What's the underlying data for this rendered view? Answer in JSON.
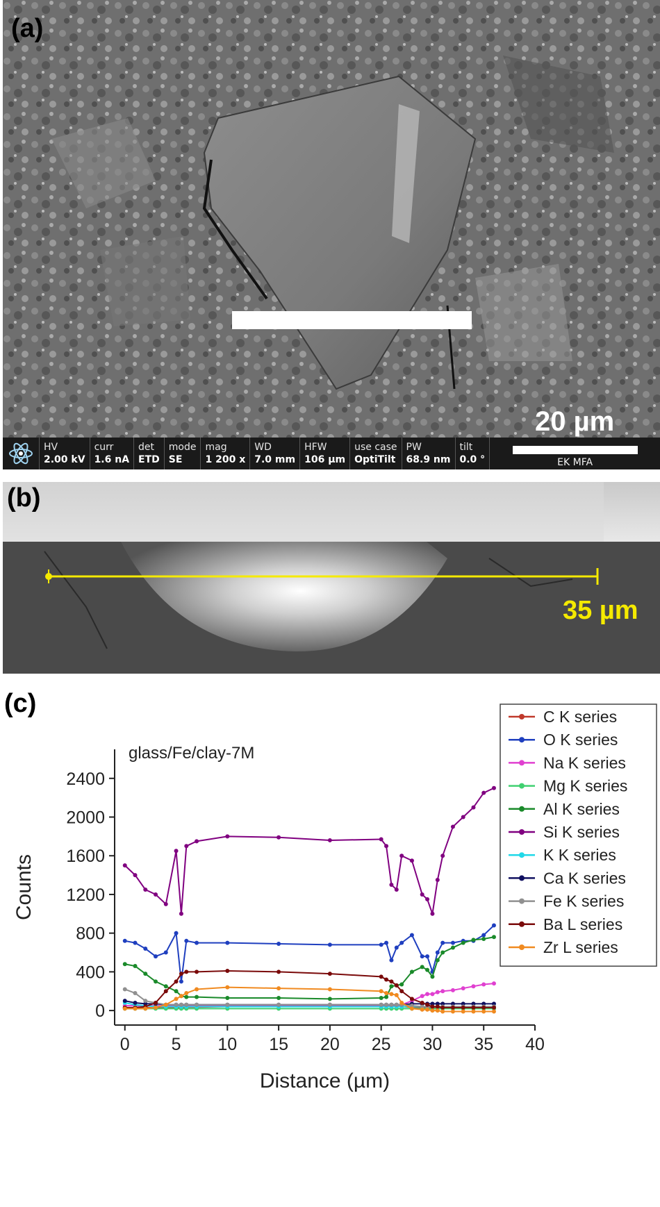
{
  "panel_a": {
    "label": "(a)",
    "scale_text": "20 µm",
    "info_bar": {
      "fields": [
        {
          "label": "HV",
          "value": "2.00 kV"
        },
        {
          "label": "curr",
          "value": "1.6 nA"
        },
        {
          "label": "det",
          "value": "ETD"
        },
        {
          "label": "mode",
          "value": "SE"
        },
        {
          "label": "mag",
          "value": "1 200 x"
        },
        {
          "label": "WD",
          "value": "7.0 mm"
        },
        {
          "label": "HFW",
          "value": "106 µm"
        },
        {
          "label": "use case",
          "value": "OptiTilt"
        },
        {
          "label": "PW",
          "value": "68.9 nm"
        },
        {
          "label": "tilt",
          "value": "0.0 °"
        }
      ],
      "scale_name": "EK MFA"
    }
  },
  "panel_b": {
    "label": "(b)",
    "scale_text": "35 µm",
    "scale_color": "#f5ea00"
  },
  "panel_c": {
    "label": "(c)"
  },
  "chart_data": {
    "type": "line",
    "title": "glass/Fe/clay-7M",
    "xlabel": "Distance (µm)",
    "ylabel": "Counts",
    "xlim": [
      -1,
      40
    ],
    "ylim": [
      -150,
      2700
    ],
    "xticks": [
      0,
      5,
      10,
      15,
      20,
      25,
      30,
      35,
      40
    ],
    "yticks": [
      0,
      400,
      800,
      1200,
      1600,
      2000,
      2400
    ],
    "grid": false,
    "legend_position": "top-right",
    "x": [
      0,
      1,
      2,
      3,
      4,
      5,
      5.5,
      6,
      7,
      10,
      15,
      20,
      25,
      25.5,
      26,
      26.5,
      27,
      28,
      29,
      29.5,
      30,
      30.5,
      31,
      32,
      33,
      34,
      35,
      36
    ],
    "series": [
      {
        "name": "C K series",
        "color": "#c0392b",
        "values": [
          30,
          25,
          30,
          28,
          30,
          30,
          30,
          35,
          35,
          40,
          40,
          40,
          40,
          40,
          40,
          40,
          40,
          35,
          30,
          30,
          30,
          30,
          30,
          30,
          30,
          30,
          30,
          30
        ]
      },
      {
        "name": "O K series",
        "color": "#1f3fbf",
        "values": [
          720,
          700,
          640,
          560,
          600,
          800,
          300,
          720,
          700,
          700,
          690,
          680,
          680,
          700,
          520,
          650,
          700,
          780,
          560,
          560,
          400,
          600,
          700,
          700,
          720,
          720,
          780,
          880
        ]
      },
      {
        "name": "Na K series",
        "color": "#e040d0",
        "values": [
          50,
          50,
          50,
          50,
          50,
          50,
          50,
          50,
          50,
          50,
          50,
          50,
          50,
          50,
          50,
          50,
          60,
          100,
          150,
          170,
          170,
          190,
          200,
          210,
          230,
          250,
          270,
          280
        ]
      },
      {
        "name": "Mg K series",
        "color": "#40d070",
        "values": [
          20,
          20,
          20,
          20,
          20,
          20,
          20,
          20,
          20,
          20,
          20,
          20,
          20,
          20,
          20,
          20,
          20,
          20,
          20,
          20,
          20,
          20,
          20,
          20,
          20,
          20,
          20,
          20
        ]
      },
      {
        "name": "Al K series",
        "color": "#1a8a2a",
        "values": [
          480,
          460,
          380,
          300,
          250,
          200,
          150,
          140,
          140,
          130,
          130,
          120,
          130,
          140,
          250,
          260,
          270,
          400,
          450,
          420,
          350,
          520,
          600,
          650,
          700,
          730,
          740,
          760
        ]
      },
      {
        "name": "Si K series",
        "color": "#800080",
        "values": [
          1500,
          1400,
          1250,
          1200,
          1100,
          1650,
          1000,
          1700,
          1750,
          1800,
          1790,
          1760,
          1770,
          1700,
          1300,
          1250,
          1600,
          1550,
          1200,
          1150,
          1000,
          1350,
          1600,
          1900,
          2000,
          2100,
          2250,
          2300
        ]
      },
      {
        "name": "K K series",
        "color": "#20d8e8",
        "values": [
          80,
          60,
          50,
          40,
          40,
          40,
          40,
          40,
          40,
          40,
          40,
          40,
          40,
          40,
          40,
          40,
          40,
          40,
          40,
          40,
          40,
          40,
          40,
          40,
          40,
          40,
          40,
          40
        ]
      },
      {
        "name": "Ca K series",
        "color": "#101060",
        "values": [
          100,
          80,
          70,
          70,
          60,
          60,
          60,
          60,
          60,
          60,
          60,
          60,
          60,
          60,
          60,
          60,
          60,
          70,
          70,
          70,
          70,
          70,
          70,
          70,
          70,
          70,
          70,
          70
        ]
      },
      {
        "name": "Fe K series",
        "color": "#909090",
        "values": [
          220,
          180,
          100,
          80,
          60,
          60,
          60,
          60,
          60,
          60,
          60,
          60,
          60,
          60,
          60,
          60,
          60,
          50,
          40,
          40,
          40,
          40,
          40,
          40,
          40,
          40,
          40,
          40
        ]
      },
      {
        "name": "Ba L series",
        "color": "#7a0a0a",
        "values": [
          30,
          30,
          40,
          80,
          200,
          300,
          380,
          400,
          400,
          410,
          400,
          380,
          350,
          320,
          300,
          260,
          200,
          120,
          80,
          60,
          40,
          40,
          30,
          30,
          30,
          30,
          30,
          30
        ]
      },
      {
        "name": "Zr L series",
        "color": "#f08a20",
        "values": [
          20,
          20,
          20,
          30,
          60,
          120,
          150,
          180,
          220,
          240,
          230,
          220,
          200,
          180,
          170,
          160,
          80,
          20,
          10,
          10,
          0,
          0,
          -10,
          -10,
          -10,
          -10,
          -10,
          -10
        ]
      }
    ]
  }
}
